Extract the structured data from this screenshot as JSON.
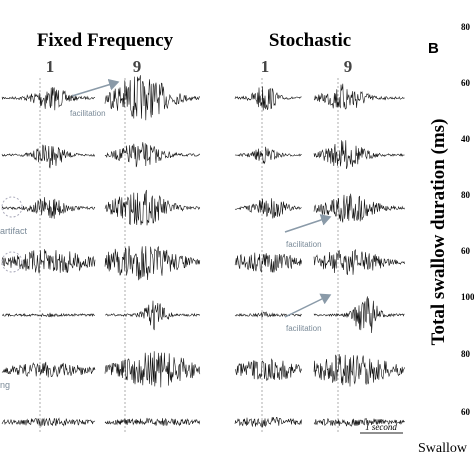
{
  "panel_titles": [
    "Fixed Frequency",
    "Stochastic"
  ],
  "stimulus_labels": [
    "1",
    "9",
    "1",
    "9"
  ],
  "annotations": {
    "facilitation": [
      "facilitation",
      "facilitation",
      "facilitation"
    ],
    "artifact": "artifact",
    "muscle_fragment": "ng",
    "scale_bar": "1 second"
  },
  "panel_b": {
    "letter": "B",
    "y_axis_label": "Total swallow duration (ms)",
    "x_axis_fragment": "Swallow",
    "tick_fragments": [
      "80",
      "60",
      "40",
      "80",
      "60",
      "100",
      "80",
      "60"
    ]
  }
}
